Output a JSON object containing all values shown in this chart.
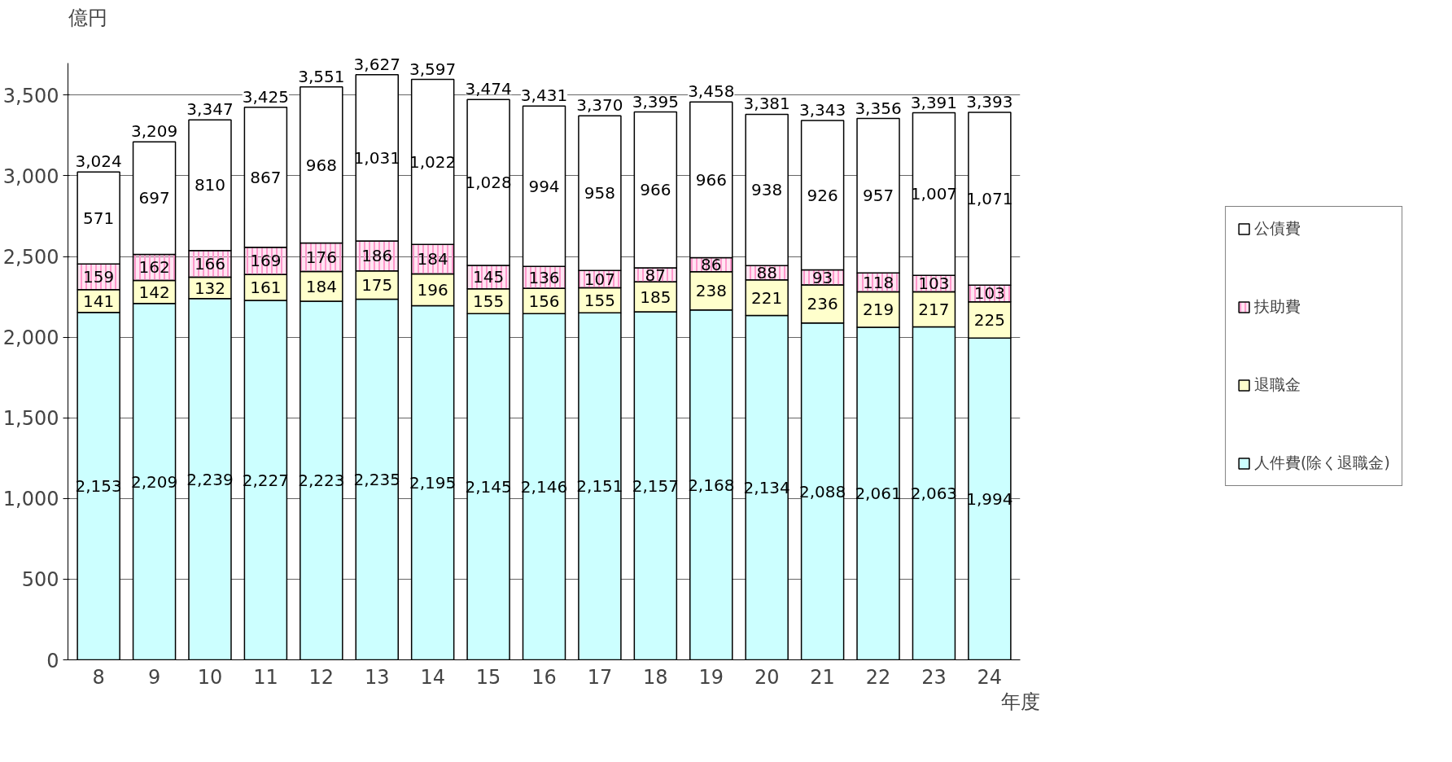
{
  "chart_data": {
    "type": "bar",
    "stacked": true,
    "ylabel": "億円",
    "xlabel": "年度",
    "categories": [
      "8",
      "9",
      "10",
      "11",
      "12",
      "13",
      "14",
      "15",
      "16",
      "17",
      "18",
      "19",
      "20",
      "21",
      "22",
      "23",
      "24"
    ],
    "series": [
      {
        "name": "人件費(除く退職金)",
        "color": "#ccffff",
        "values": [
          2153,
          2209,
          2239,
          2227,
          2223,
          2235,
          2195,
          2145,
          2146,
          2151,
          2157,
          2168,
          2134,
          2088,
          2061,
          2063,
          1994
        ],
        "value_labels": [
          "2,153",
          "2,209",
          "2,239",
          "2,227",
          "2,223",
          "2,235",
          "2,195",
          "2,145",
          "2,146",
          "2,151",
          "2,157",
          "2,168",
          "2,134",
          "2,088",
          "2,061",
          "2,063",
          "1,994"
        ]
      },
      {
        "name": "退職金",
        "color": "#ffffcc",
        "values": [
          141,
          142,
          132,
          161,
          184,
          175,
          196,
          155,
          156,
          155,
          185,
          238,
          221,
          236,
          219,
          217,
          225
        ],
        "value_labels": [
          "141",
          "142",
          "132",
          "161",
          "184",
          "175",
          "196",
          "155",
          "156",
          "155",
          "185",
          "238",
          "221",
          "236",
          "219",
          "217",
          "225"
        ]
      },
      {
        "name": "扶助費",
        "color": "#ff99cc",
        "values": [
          159,
          162,
          166,
          169,
          176,
          186,
          184,
          145,
          136,
          107,
          87,
          86,
          88,
          93,
          118,
          103,
          103
        ],
        "value_labels": [
          "159",
          "162",
          "166",
          "169",
          "176",
          "186",
          "184",
          "145",
          "136",
          "107",
          "87",
          "86",
          "88",
          "93",
          "118",
          "103",
          "103"
        ]
      },
      {
        "name": "公債費",
        "color": "#ffffff",
        "values": [
          571,
          697,
          810,
          867,
          968,
          1031,
          1022,
          1028,
          994,
          958,
          966,
          966,
          938,
          926,
          957,
          1007,
          1071
        ],
        "value_labels": [
          "571",
          "697",
          "810",
          "867",
          "968",
          "1,031",
          "1,022",
          "1,028",
          "994",
          "958",
          "966",
          "966",
          "938",
          "926",
          "957",
          "1,007",
          "1,071"
        ]
      }
    ],
    "totals": [
      "3,024",
      "3,209",
      "3,347",
      "3,425",
      "3,551",
      "3,627",
      "3,597",
      "3,474",
      "3,431",
      "3,370",
      "3,395",
      "3,458",
      "3,381",
      "3,343",
      "3,356",
      "3,391",
      "3,393"
    ],
    "ylim": [
      0,
      3700
    ],
    "yticks": [
      {
        "value": 0,
        "label": "0"
      },
      {
        "value": 500,
        "label": "500"
      },
      {
        "value": 1000,
        "label": "1,000"
      },
      {
        "value": 1500,
        "label": "1,500"
      },
      {
        "value": 2000,
        "label": "2,000"
      },
      {
        "value": 2500,
        "label": "2,500"
      },
      {
        "value": 3000,
        "label": "3,000"
      },
      {
        "value": 3500,
        "label": "3,500"
      }
    ],
    "grid": "y",
    "legend": "right"
  }
}
